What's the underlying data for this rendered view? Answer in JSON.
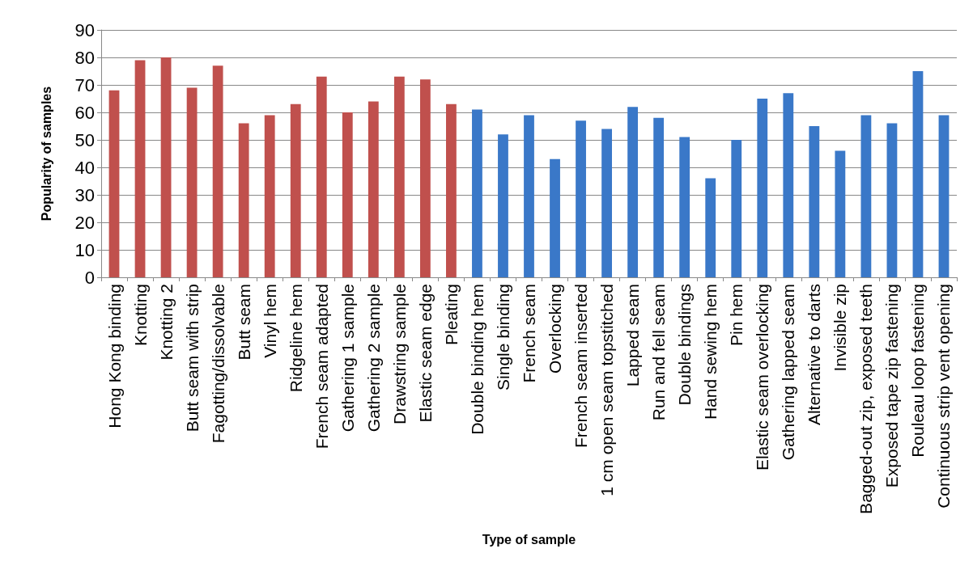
{
  "chart_data": {
    "type": "bar",
    "xlabel": "Type of sample",
    "ylabel": "Popularity of samples",
    "categories": [
      "Hong Kong binding",
      "Knotting",
      "Knotting 2",
      "Butt seam with strip",
      "Fagotting/dissolvable",
      "Butt seam",
      "Vinyl hem",
      "Ridgeline hem",
      "French seam adapted",
      "Gathering 1 sample",
      "Gathering 2 sample",
      "Drawstring sample",
      "Elastic seam edge",
      "Pleating",
      "Double binding hem",
      "Single binding",
      "French seam",
      "Overlocking",
      "French seam inserted",
      "1 cm open seam topstitched",
      "Lapped seam",
      "Run and fell seam",
      "Double bindings",
      "Hand sewing hem",
      "Pin hem",
      "Elastic seam overlocking",
      "Gathering lapped seam",
      "Alternative to darts",
      "Invisible zip",
      "Bagged-out zip, exposed teeth",
      "Exposed tape zip fastening",
      "Rouleau loop fastening",
      "Continuous strip vent opening"
    ],
    "values": [
      68,
      79,
      80,
      69,
      77,
      56,
      59,
      63,
      73,
      60,
      64,
      73,
      72,
      63,
      61,
      52,
      59,
      43,
      57,
      54,
      62,
      58,
      51,
      36,
      50,
      65,
      67,
      55,
      46,
      59,
      56,
      75,
      59
    ],
    "colors": [
      "#c0504d",
      "#c0504d",
      "#c0504d",
      "#c0504d",
      "#c0504d",
      "#c0504d",
      "#c0504d",
      "#c0504d",
      "#c0504d",
      "#c0504d",
      "#c0504d",
      "#c0504d",
      "#c0504d",
      "#c0504d",
      "#3a78c8",
      "#3a78c8",
      "#3a78c8",
      "#3a78c8",
      "#3a78c8",
      "#3a78c8",
      "#3a78c8",
      "#3a78c8",
      "#3a78c8",
      "#3a78c8",
      "#3a78c8",
      "#3a78c8",
      "#3a78c8",
      "#3a78c8",
      "#3a78c8",
      "#3a78c8",
      "#3a78c8",
      "#3a78c8",
      "#3a78c8"
    ],
    "ylim": [
      0,
      90
    ],
    "yticks": [
      0,
      10,
      20,
      30,
      40,
      50,
      60,
      70,
      80,
      90
    ],
    "grid": "y"
  }
}
